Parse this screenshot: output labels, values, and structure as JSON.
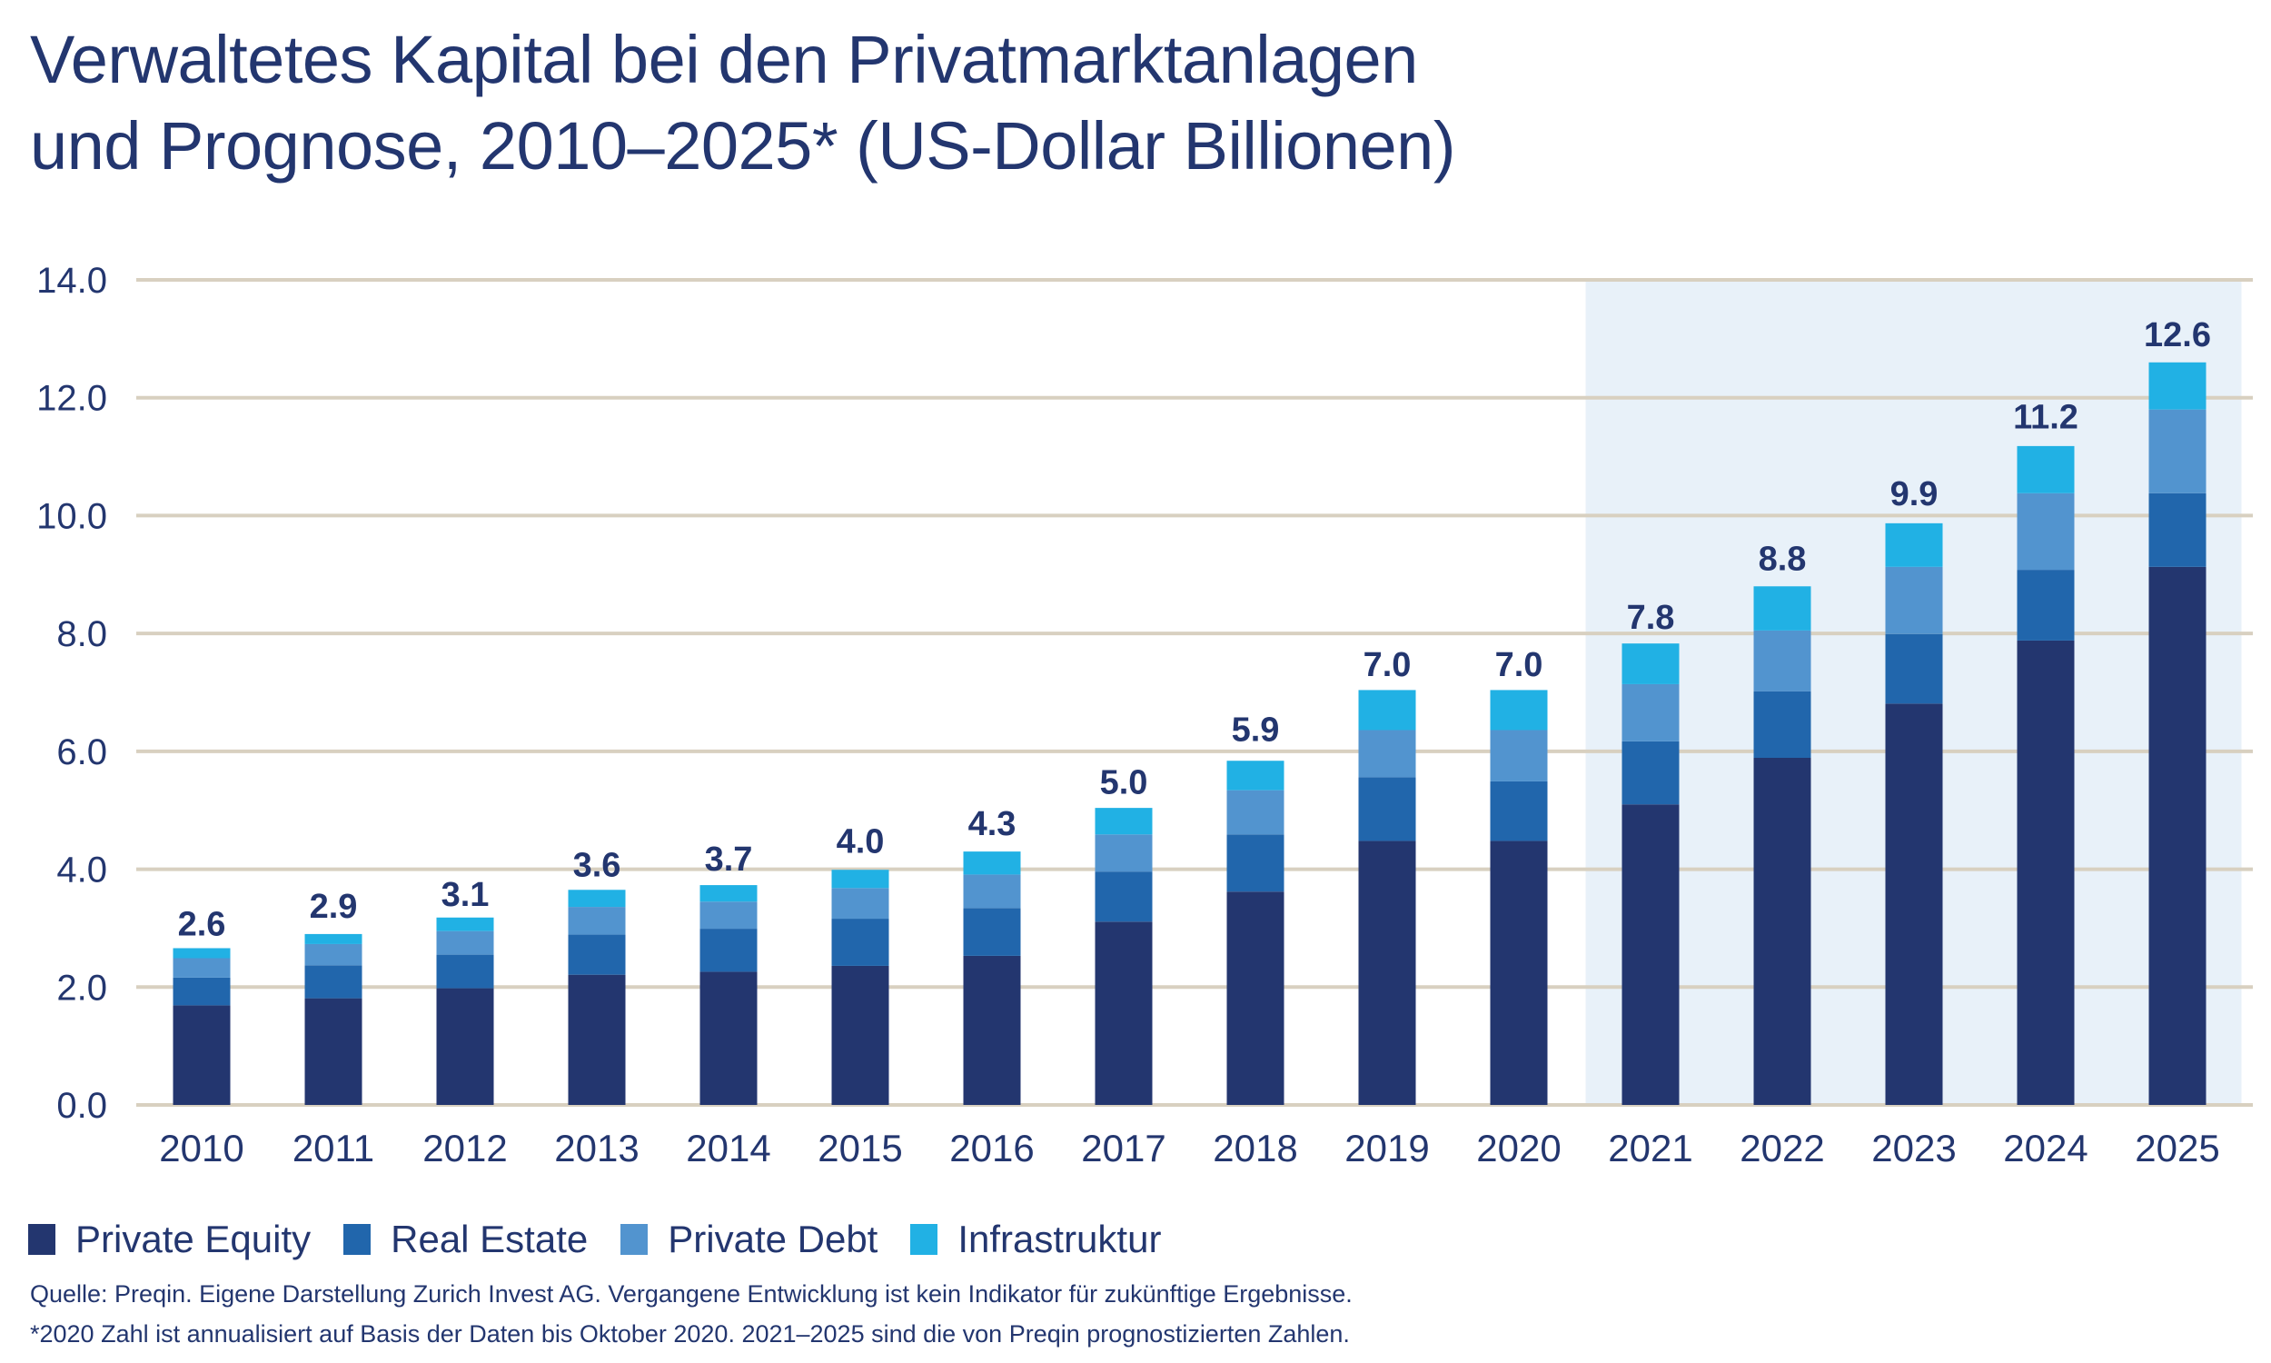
{
  "title": {
    "line1": "Verwaltetes Kapital bei den Privatmarktanlagen",
    "line2": "und Prognose, 2010–2025* (US-Dollar Billionen)"
  },
  "chart_data": {
    "type": "bar",
    "stacked": true,
    "title": "Verwaltetes Kapital bei den Privatmarktanlagen und Prognose, 2010–2025* (US-Dollar Billionen)",
    "xlabel": "",
    "ylabel": "",
    "ylim": [
      0,
      14
    ],
    "yticks": [
      0,
      2,
      4,
      6,
      8,
      10,
      12,
      14
    ],
    "ytick_labels": [
      "0.0",
      "2.0",
      "4.0",
      "6.0",
      "8.0",
      "10.0",
      "12.0",
      "14.0"
    ],
    "grid": true,
    "legend_position": "bottom-left",
    "categories": [
      "2010",
      "2011",
      "2012",
      "2013",
      "2014",
      "2015",
      "2016",
      "2017",
      "2018",
      "2019",
      "2020",
      "2021",
      "2022",
      "2023",
      "2024",
      "2025"
    ],
    "forecast_range": [
      "2021",
      "2025"
    ],
    "series": [
      {
        "name": "Private Equity",
        "color": "#23366F",
        "values": [
          1.69,
          1.81,
          1.98,
          2.21,
          2.26,
          2.36,
          2.53,
          3.11,
          3.62,
          4.48,
          4.48,
          5.1,
          5.89,
          6.81,
          7.88,
          9.13
        ]
      },
      {
        "name": "Real Estate",
        "color": "#2166AC",
        "values": [
          0.47,
          0.56,
          0.57,
          0.68,
          0.73,
          0.8,
          0.81,
          0.85,
          0.97,
          1.08,
          1.01,
          1.07,
          1.13,
          1.18,
          1.2,
          1.25
        ]
      },
      {
        "name": "Private Debt",
        "color": "#5294CF",
        "values": [
          0.33,
          0.36,
          0.4,
          0.47,
          0.46,
          0.52,
          0.57,
          0.63,
          0.75,
          0.8,
          0.87,
          0.97,
          1.03,
          1.14,
          1.3,
          1.42
        ]
      },
      {
        "name": "Infrastruktur",
        "color": "#21B1E4",
        "values": [
          0.17,
          0.17,
          0.23,
          0.29,
          0.28,
          0.31,
          0.39,
          0.45,
          0.5,
          0.68,
          0.68,
          0.69,
          0.75,
          0.74,
          0.8,
          0.8
        ]
      }
    ],
    "totals": [
      2.6,
      2.9,
      3.1,
      3.6,
      3.7,
      4.0,
      4.3,
      5.0,
      5.9,
      7.0,
      7.0,
      7.8,
      8.8,
      9.9,
      11.2,
      12.6
    ],
    "total_labels": [
      "2.6",
      "2.9",
      "3.1",
      "3.6",
      "3.7",
      "4.0",
      "4.3",
      "5.0",
      "5.9",
      "7.0",
      "7.0",
      "7.8",
      "8.8",
      "9.9",
      "11.2",
      "12.6"
    ]
  },
  "colors": {
    "text": "#23366F",
    "gridline": "#D8D0C0",
    "forecast_shading": "#E8F1F9"
  },
  "legend": [
    {
      "label": "Private Equity",
      "color": "#23366F"
    },
    {
      "label": "Real Estate",
      "color": "#2166AC"
    },
    {
      "label": "Private Debt",
      "color": "#5294CF"
    },
    {
      "label": "Infrastruktur",
      "color": "#21B1E4"
    }
  ],
  "notes": {
    "source": "Quelle: Preqin. Eigene Darstellung Zurich Invest AG. Vergangene Entwicklung ist kein Indikator für zukünftige Ergebnisse.",
    "footnote": "*2020 Zahl ist annualisiert auf Basis der Daten bis Oktober 2020. 2021–2025 sind die von Preqin prognostizierten Zahlen."
  }
}
